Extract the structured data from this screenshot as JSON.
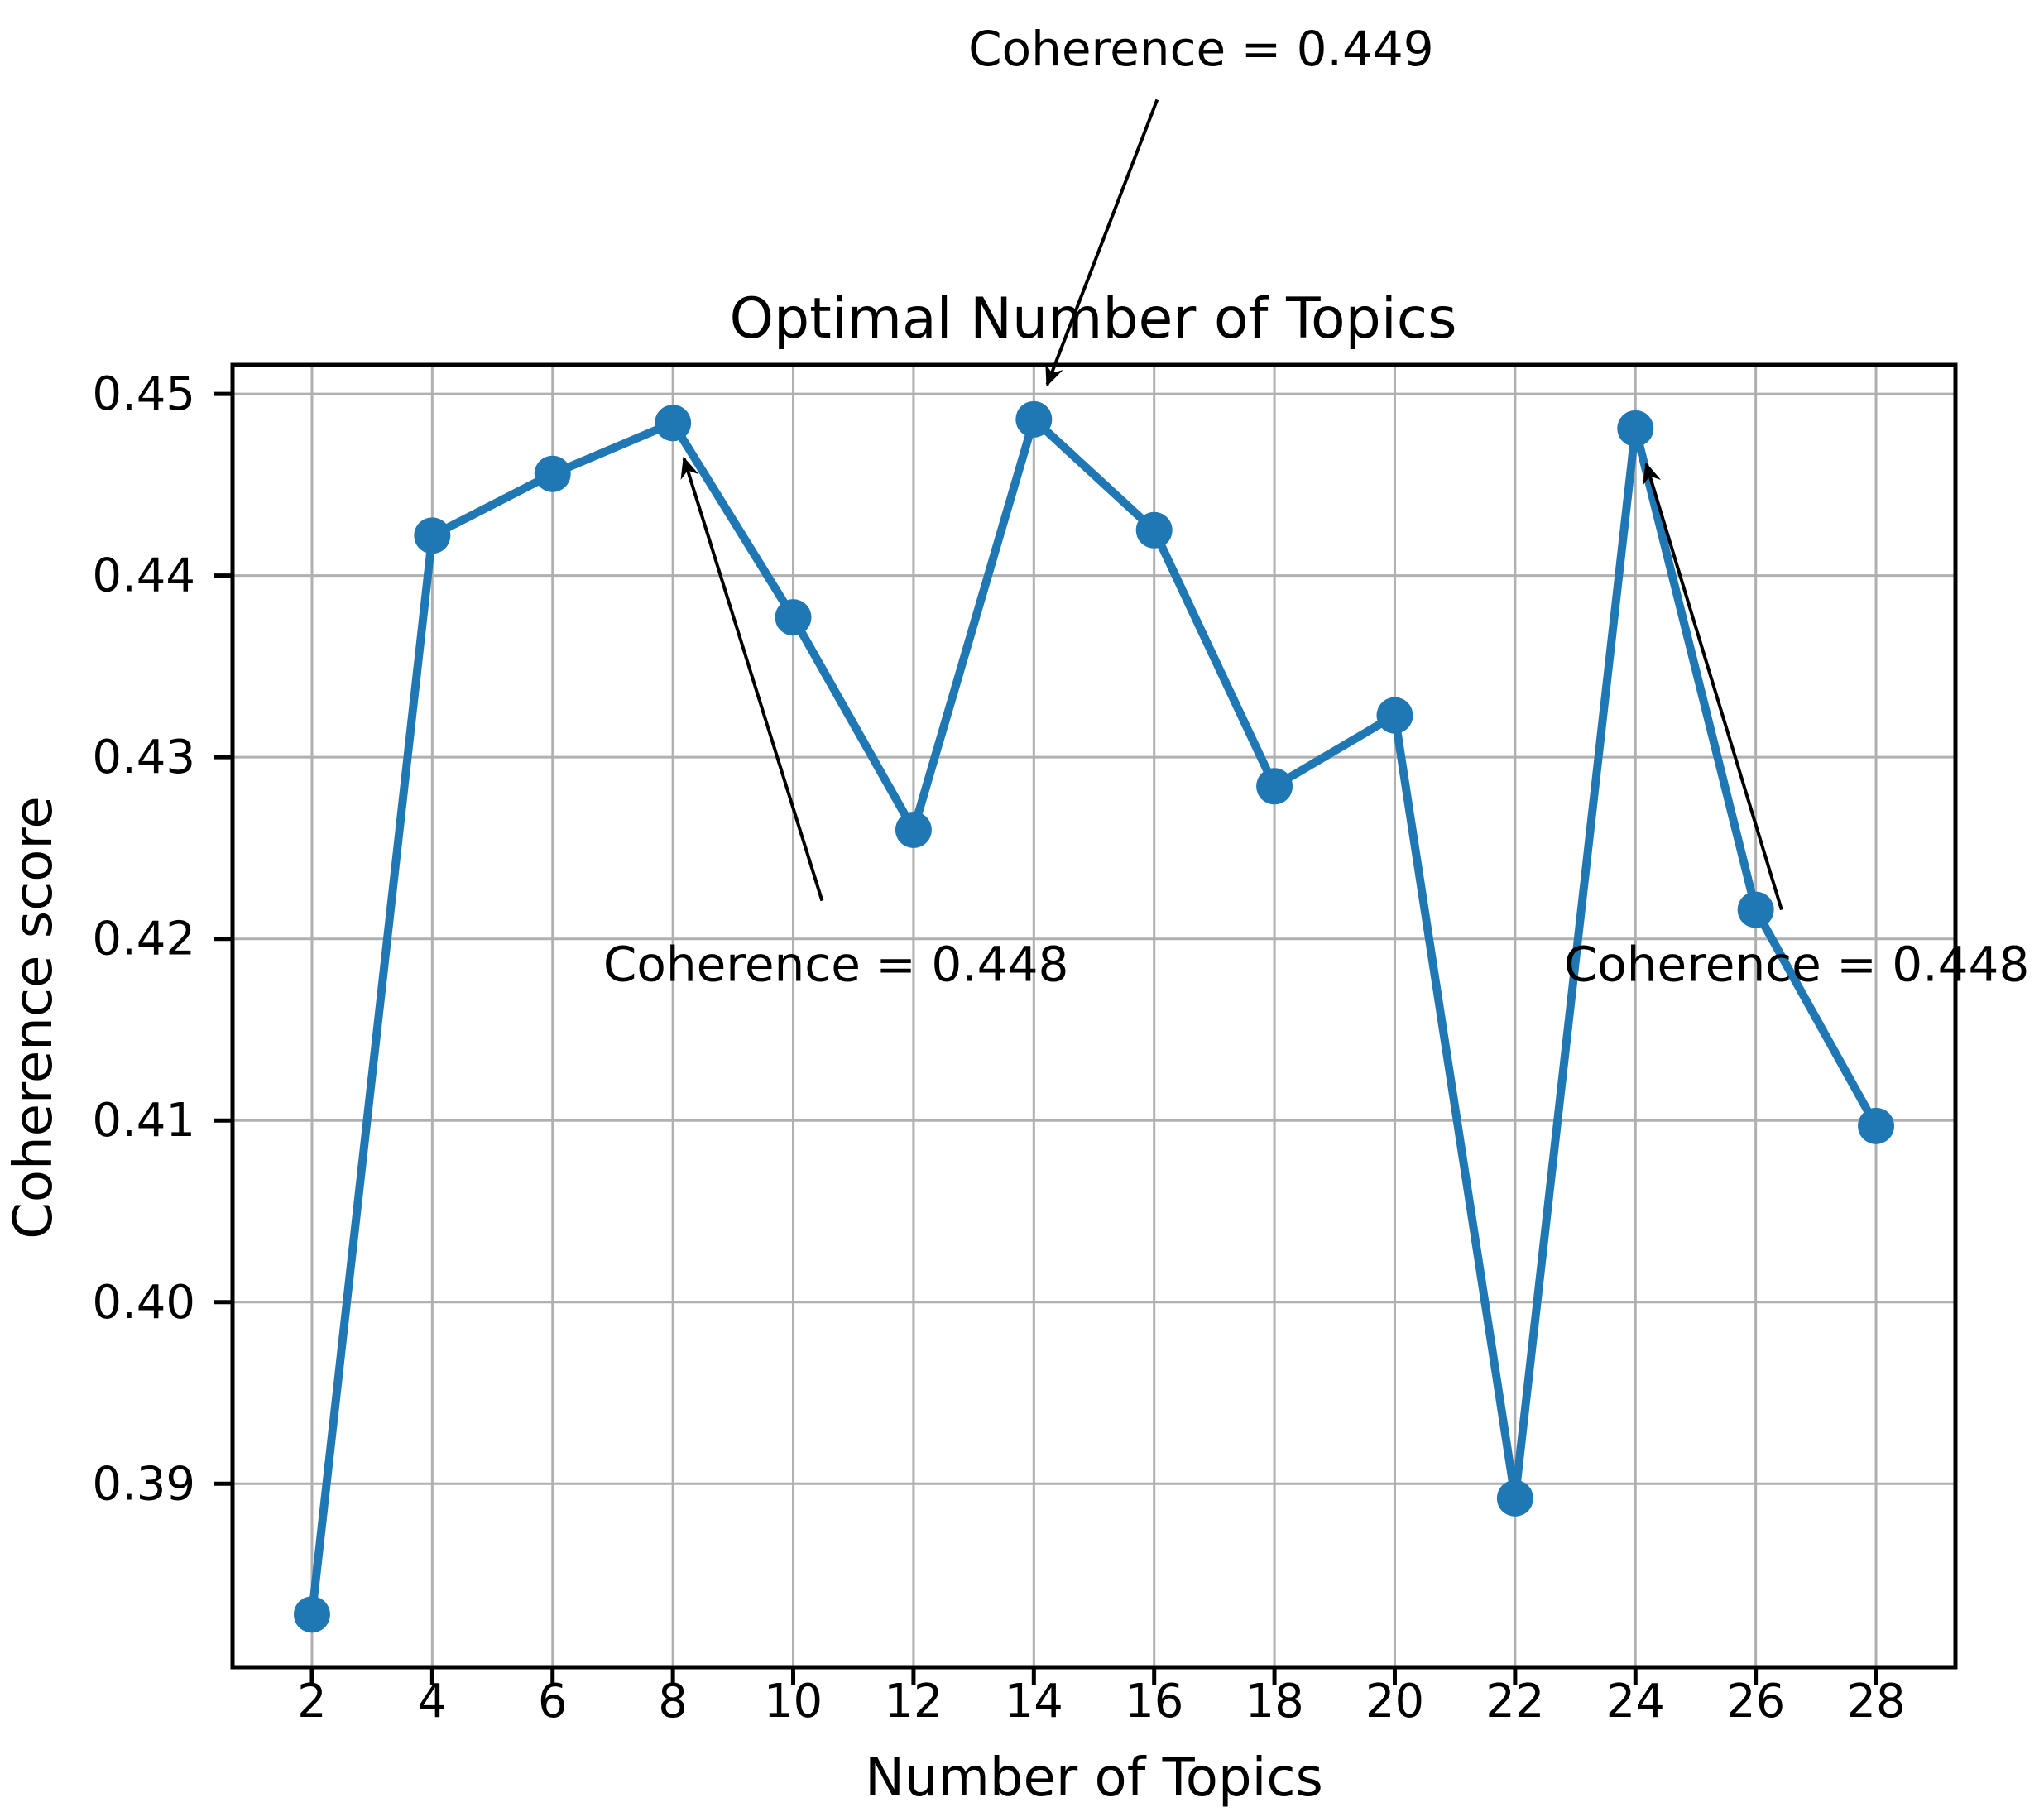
{
  "chart_data": {
    "type": "line",
    "title": "Optimal Number of Topics",
    "xlabel": "Number of Topics",
    "ylabel": "Coherence score",
    "x": [
      2,
      4,
      6,
      8,
      10,
      12,
      14,
      16,
      18,
      20,
      22,
      24,
      26,
      28
    ],
    "y": [
      0.3828,
      0.4422,
      0.4456,
      0.4484,
      0.4377,
      0.426,
      0.4486,
      0.4425,
      0.4284,
      0.4323,
      0.3892,
      0.4481,
      0.4216,
      0.4097
    ],
    "x_ticks": {
      "values": [
        2,
        4,
        6,
        8,
        10,
        12,
        14,
        16,
        18,
        20,
        22,
        24,
        26,
        28
      ],
      "labels": [
        "2",
        "4",
        "6",
        "8",
        "10",
        "12",
        "14",
        "16",
        "18",
        "20",
        "22",
        "24",
        "26",
        "28"
      ]
    },
    "y_ticks": {
      "values": [
        0.45,
        0.44,
        0.43,
        0.42,
        0.41,
        0.4,
        0.39
      ],
      "labels": [
        "0.45",
        "0.44",
        "0.43",
        "0.42",
        "0.41",
        "0.40",
        "0.39"
      ]
    },
    "xlim": [
      0.68,
      29.32
    ],
    "ylim": [
      0.3799,
      0.4516
    ],
    "grid": true,
    "legend": "none",
    "line_color": "#1f77b4",
    "marker": "circle",
    "marker_radius": 22,
    "line_width": 10,
    "colors": {
      "grid": "#b0b0b0",
      "axis": "#000000",
      "text": "#000000",
      "background": "#ffffff",
      "annotation_arrow": "#000000"
    },
    "annotations": [
      {
        "label": "Coherence = 0.449",
        "target": {
          "x": 14,
          "y": 0.4486
        },
        "text_pos": {
          "x": 16.78,
          "y": 0.469
        },
        "arrow_tail": {
          "x": 16.05,
          "y": 0.4662
        }
      },
      {
        "label": "Coherence = 0.448",
        "target": {
          "x": 8,
          "y": 0.4484
        },
        "text_pos": {
          "x": 10.71,
          "y": 0.4186
        },
        "arrow_tail": {
          "x": 10.48,
          "y": 0.4221
        }
      },
      {
        "label": "Coherence = 0.448",
        "target": {
          "x": 24,
          "y": 0.4481
        },
        "text_pos": {
          "x": 26.68,
          "y": 0.4186
        },
        "arrow_tail": {
          "x": 26.43,
          "y": 0.4216
        }
      }
    ]
  }
}
